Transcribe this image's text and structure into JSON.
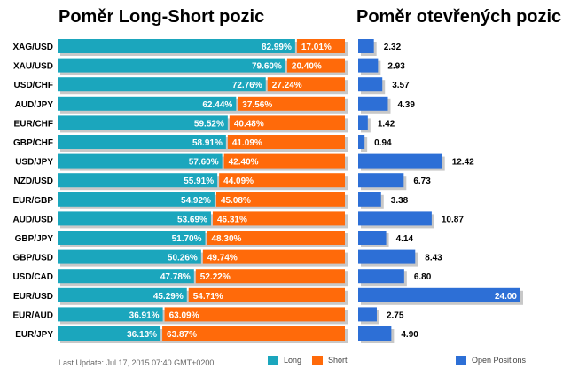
{
  "titles": {
    "left": "Poměr Long-Short pozic",
    "right": "Poměr otevřených pozic"
  },
  "footer": {
    "last_update": "Last Update: Jul 17, 2015 07:40 GMT+0200"
  },
  "legend": {
    "long": "Long",
    "short": "Short",
    "open": "Open Positions"
  },
  "colors": {
    "long": "#1ba6bd",
    "short": "#ff6a0a",
    "open": "#2d6fd6",
    "shadow": "#c8c8c8"
  },
  "chart_data": [
    {
      "type": "bar",
      "title": "Poměr Long-Short pozic",
      "stacked": true,
      "orientation": "horizontal",
      "categories": [
        "XAG/USD",
        "XAU/USD",
        "USD/CHF",
        "AUD/JPY",
        "EUR/CHF",
        "GBP/CHF",
        "USD/JPY",
        "NZD/USD",
        "EUR/GBP",
        "AUD/USD",
        "GBP/JPY",
        "GBP/USD",
        "USD/CAD",
        "EUR/USD",
        "EUR/AUD",
        "EUR/JPY"
      ],
      "series": [
        {
          "name": "Long",
          "values": [
            82.99,
            79.6,
            72.76,
            62.44,
            59.52,
            58.91,
            57.6,
            55.91,
            54.92,
            53.69,
            51.7,
            50.26,
            47.78,
            45.29,
            36.91,
            36.13
          ]
        },
        {
          "name": "Short",
          "values": [
            17.01,
            20.4,
            27.24,
            37.56,
            40.48,
            41.09,
            42.4,
            44.09,
            45.08,
            46.31,
            48.3,
            49.74,
            52.22,
            54.71,
            63.09,
            63.87
          ]
        }
      ],
      "labels": {
        "long": [
          "82.99%",
          "79.60%",
          "72.76%",
          "62.44%",
          "59.52%",
          "58.91%",
          "57.60%",
          "55.91%",
          "54.92%",
          "53.69%",
          "51.70%",
          "50.26%",
          "47.78%",
          "45.29%",
          "36.91%",
          "36.13%"
        ],
        "short": [
          "17.01%",
          "20.40%",
          "27.24%",
          "37.56%",
          "40.48%",
          "41.09%",
          "42.40%",
          "44.09%",
          "45.08%",
          "46.31%",
          "48.30%",
          "49.74%",
          "52.22%",
          "54.71%",
          "63.09%",
          "63.87%"
        ]
      },
      "xlim": [
        0,
        100
      ]
    },
    {
      "type": "bar",
      "title": "Poměr otevřených pozic",
      "orientation": "horizontal",
      "categories": [
        "XAG/USD",
        "XAU/USD",
        "USD/CHF",
        "AUD/JPY",
        "EUR/CHF",
        "GBP/CHF",
        "USD/JPY",
        "NZD/USD",
        "EUR/GBP",
        "AUD/USD",
        "GBP/JPY",
        "GBP/USD",
        "USD/CAD",
        "EUR/USD",
        "EUR/AUD",
        "EUR/JPY"
      ],
      "series": [
        {
          "name": "Open Positions",
          "values": [
            2.32,
            2.93,
            3.57,
            4.39,
            1.42,
            0.94,
            12.42,
            6.73,
            3.38,
            10.87,
            4.14,
            8.43,
            6.8,
            24.0,
            2.75,
            4.9
          ]
        }
      ],
      "labels": [
        "2.32",
        "2.93",
        "3.57",
        "4.39",
        "1.42",
        "0.94",
        "12.42",
        "6.73",
        "3.38",
        "10.87",
        "4.14",
        "8.43",
        "6.80",
        "24.00",
        "2.75",
        "4.90"
      ],
      "xlim": [
        0,
        24
      ]
    }
  ]
}
